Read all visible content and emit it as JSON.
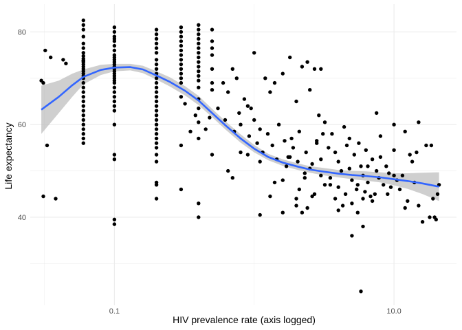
{
  "chart_data": {
    "type": "scatter",
    "title": "",
    "xlabel": "HIV prevalence rate (axis logged)",
    "ylabel": "Life expectancy",
    "x_scale": "log10",
    "xlim": [
      0.025,
      28
    ],
    "ylim": [
      21,
      86
    ],
    "x_ticks": [
      0.1,
      10.0
    ],
    "x_tick_labels": [
      "0.1",
      "10.0"
    ],
    "y_ticks": [
      40,
      60,
      80
    ],
    "y_tick_labels": [
      "40",
      "60",
      "80"
    ],
    "grid": true,
    "legend": "none",
    "points": [
      [
        0.03,
        69.5
      ],
      [
        0.031,
        69.0
      ],
      [
        0.032,
        76.0
      ],
      [
        0.033,
        55.5
      ],
      [
        0.035,
        74.5
      ],
      [
        0.038,
        44.0
      ],
      [
        0.031,
        44.5
      ],
      [
        0.043,
        74.0
      ],
      [
        0.045,
        73.2
      ],
      [
        0.06,
        73.8
      ],
      [
        0.06,
        73.8
      ],
      [
        0.06,
        82.5
      ],
      [
        0.06,
        81.5
      ],
      [
        0.06,
        80.5
      ],
      [
        0.06,
        79.0
      ],
      [
        0.06,
        77.5
      ],
      [
        0.06,
        76.5
      ],
      [
        0.06,
        75.5
      ],
      [
        0.06,
        74.8
      ],
      [
        0.06,
        74.2
      ],
      [
        0.06,
        73.5
      ],
      [
        0.06,
        73.0
      ],
      [
        0.06,
        72.5
      ],
      [
        0.06,
        72.0
      ],
      [
        0.06,
        71.5
      ],
      [
        0.06,
        71.0
      ],
      [
        0.06,
        70.5
      ],
      [
        0.06,
        70.0
      ],
      [
        0.06,
        69.0
      ],
      [
        0.06,
        68.0
      ],
      [
        0.06,
        67.0
      ],
      [
        0.06,
        66.0
      ],
      [
        0.06,
        65.0
      ],
      [
        0.06,
        64.0
      ],
      [
        0.06,
        63.0
      ],
      [
        0.06,
        62.0
      ],
      [
        0.06,
        61.0
      ],
      [
        0.06,
        60.0
      ],
      [
        0.06,
        59.0
      ],
      [
        0.06,
        58.0
      ],
      [
        0.06,
        57.0
      ],
      [
        0.06,
        56.0
      ],
      [
        0.1,
        81.0
      ],
      [
        0.1,
        80.0
      ],
      [
        0.1,
        79.0
      ],
      [
        0.1,
        78.5
      ],
      [
        0.1,
        78.0
      ],
      [
        0.1,
        77.0
      ],
      [
        0.1,
        76.0
      ],
      [
        0.1,
        75.0
      ],
      [
        0.1,
        74.5
      ],
      [
        0.1,
        74.0
      ],
      [
        0.1,
        73.5
      ],
      [
        0.1,
        73.0
      ],
      [
        0.1,
        72.5
      ],
      [
        0.1,
        72.0
      ],
      [
        0.1,
        71.5
      ],
      [
        0.1,
        71.0
      ],
      [
        0.1,
        70.5
      ],
      [
        0.1,
        70.0
      ],
      [
        0.1,
        69.5
      ],
      [
        0.1,
        69.0
      ],
      [
        0.1,
        68.0
      ],
      [
        0.1,
        67.0
      ],
      [
        0.1,
        66.0
      ],
      [
        0.1,
        65.0
      ],
      [
        0.1,
        64.0
      ],
      [
        0.1,
        63.0
      ],
      [
        0.1,
        60.0
      ],
      [
        0.1,
        53.5
      ],
      [
        0.1,
        52.5
      ],
      [
        0.1,
        39.5
      ],
      [
        0.1,
        38.5
      ],
      [
        0.2,
        80.5
      ],
      [
        0.2,
        79.5
      ],
      [
        0.2,
        78.5
      ],
      [
        0.2,
        77.5
      ],
      [
        0.2,
        76.5
      ],
      [
        0.2,
        75.5
      ],
      [
        0.2,
        74.0
      ],
      [
        0.2,
        73.0
      ],
      [
        0.2,
        72.0
      ],
      [
        0.2,
        71.0
      ],
      [
        0.2,
        70.0
      ],
      [
        0.2,
        69.0
      ],
      [
        0.2,
        68.0
      ],
      [
        0.2,
        67.0
      ],
      [
        0.2,
        66.0
      ],
      [
        0.2,
        65.0
      ],
      [
        0.2,
        64.0
      ],
      [
        0.2,
        63.0
      ],
      [
        0.2,
        62.0
      ],
      [
        0.2,
        61.0
      ],
      [
        0.2,
        60.0
      ],
      [
        0.2,
        59.0
      ],
      [
        0.2,
        58.0
      ],
      [
        0.2,
        57.0
      ],
      [
        0.2,
        56.0
      ],
      [
        0.2,
        55.0
      ],
      [
        0.2,
        53.5
      ],
      [
        0.2,
        52.0
      ],
      [
        0.2,
        47.5
      ],
      [
        0.2,
        47.0
      ],
      [
        0.2,
        44.0
      ],
      [
        0.3,
        81.0
      ],
      [
        0.3,
        80.0
      ],
      [
        0.3,
        79.0
      ],
      [
        0.3,
        78.0
      ],
      [
        0.3,
        77.0
      ],
      [
        0.3,
        76.0
      ],
      [
        0.3,
        75.0
      ],
      [
        0.3,
        74.0
      ],
      [
        0.3,
        73.0
      ],
      [
        0.3,
        72.0
      ],
      [
        0.3,
        71.0
      ],
      [
        0.3,
        70.0
      ],
      [
        0.3,
        69.0
      ],
      [
        0.3,
        66.0
      ],
      [
        0.3,
        55.5
      ],
      [
        0.3,
        46.0
      ],
      [
        0.4,
        81.5
      ],
      [
        0.4,
        80.5
      ],
      [
        0.4,
        79.5
      ],
      [
        0.4,
        78.5
      ],
      [
        0.4,
        77.5
      ],
      [
        0.4,
        76.5
      ],
      [
        0.4,
        75.5
      ],
      [
        0.4,
        74.5
      ],
      [
        0.4,
        73.5
      ],
      [
        0.4,
        72.5
      ],
      [
        0.4,
        71.5
      ],
      [
        0.4,
        70.5
      ],
      [
        0.4,
        69.5
      ],
      [
        0.4,
        68.0
      ],
      [
        0.4,
        65.5
      ],
      [
        0.4,
        63.5
      ],
      [
        0.4,
        60.5
      ],
      [
        0.4,
        57.0
      ],
      [
        0.4,
        43.0
      ],
      [
        0.4,
        40.0
      ],
      [
        0.5,
        80.5
      ],
      [
        0.5,
        78.0
      ],
      [
        0.5,
        76.5
      ],
      [
        0.5,
        75.0
      ],
      [
        0.5,
        72.0
      ],
      [
        0.5,
        69.0
      ],
      [
        0.5,
        67.5
      ],
      [
        0.5,
        53.5
      ],
      [
        0.32,
        64.5
      ],
      [
        0.35,
        58.5
      ],
      [
        0.38,
        62.0
      ],
      [
        0.45,
        59.0
      ],
      [
        0.48,
        61.5
      ],
      [
        0.55,
        63.5
      ],
      [
        0.6,
        69.0
      ],
      [
        0.62,
        61.0
      ],
      [
        0.65,
        67.0
      ],
      [
        0.7,
        72.0
      ],
      [
        0.72,
        58.5
      ],
      [
        0.75,
        70.0
      ],
      [
        0.78,
        62.5
      ],
      [
        0.8,
        60.0
      ],
      [
        0.85,
        65.5
      ],
      [
        0.9,
        64.0
      ],
      [
        0.92,
        57.5
      ],
      [
        0.95,
        63.5
      ],
      [
        1.0,
        75.5
      ],
      [
        1.0,
        61.0
      ],
      [
        1.05,
        56.0
      ],
      [
        1.1,
        59.0
      ],
      [
        1.15,
        54.0
      ],
      [
        1.2,
        70.0
      ],
      [
        1.25,
        58.0
      ],
      [
        1.3,
        67.0
      ],
      [
        1.35,
        55.5
      ],
      [
        1.4,
        69.0
      ],
      [
        1.45,
        52.5
      ],
      [
        1.5,
        60.0
      ],
      [
        1.6,
        71.0
      ],
      [
        1.65,
        56.5
      ],
      [
        1.7,
        51.0
      ],
      [
        1.75,
        53.0
      ],
      [
        1.8,
        74.5
      ],
      [
        1.85,
        57.0
      ],
      [
        1.9,
        55.0
      ],
      [
        2.0,
        65.0
      ],
      [
        2.05,
        52.0
      ],
      [
        2.1,
        58.5
      ],
      [
        2.2,
        72.5
      ],
      [
        2.3,
        49.5
      ],
      [
        2.35,
        54.0
      ],
      [
        2.4,
        73.5
      ],
      [
        2.5,
        67.5
      ],
      [
        2.6,
        51.5
      ],
      [
        2.7,
        72.0
      ],
      [
        2.8,
        56.0
      ],
      [
        2.9,
        62.0
      ],
      [
        3.0,
        72.0
      ],
      [
        3.1,
        58.0
      ],
      [
        3.2,
        47.0
      ],
      [
        0.65,
        50.0
      ],
      [
        0.7,
        48.5
      ],
      [
        0.8,
        54.0
      ],
      [
        0.9,
        53.5
      ],
      [
        1.1,
        52.0
      ],
      [
        1.1,
        40.5
      ],
      [
        1.3,
        44.5
      ],
      [
        1.4,
        47.5
      ],
      [
        1.6,
        48.0
      ],
      [
        1.6,
        41.0
      ],
      [
        1.8,
        53.0
      ],
      [
        2.0,
        42.5
      ],
      [
        2.1,
        46.0
      ],
      [
        2.2,
        41.0
      ],
      [
        2.4,
        42.0
      ],
      [
        2.5,
        50.5
      ],
      [
        2.7,
        45.0
      ],
      [
        2.8,
        56.5
      ],
      [
        3.0,
        52.5
      ],
      [
        3.2,
        60.5
      ],
      [
        3.4,
        55.0
      ],
      [
        3.6,
        58.0
      ],
      [
        3.8,
        54.0
      ],
      [
        4.0,
        52.0
      ],
      [
        4.2,
        50.0
      ],
      [
        4.4,
        59.5
      ],
      [
        4.6,
        55.5
      ],
      [
        4.8,
        57.0
      ],
      [
        5.0,
        48.0
      ],
      [
        5.2,
        53.5
      ],
      [
        5.4,
        46.0
      ],
      [
        5.6,
        56.0
      ],
      [
        5.8,
        51.0
      ],
      [
        6.0,
        49.0
      ],
      [
        6.3,
        54.5
      ],
      [
        6.5,
        47.5
      ],
      [
        6.8,
        44.5
      ],
      [
        7.0,
        52.5
      ],
      [
        7.3,
        45.0
      ],
      [
        7.5,
        50.0
      ],
      [
        7.8,
        48.5
      ],
      [
        8.0,
        53.0
      ],
      [
        8.4,
        47.0
      ],
      [
        8.8,
        51.0
      ],
      [
        9.2,
        49.5
      ],
      [
        9.5,
        46.5
      ],
      [
        10.0,
        49.0
      ],
      [
        10.5,
        48.0
      ],
      [
        11.0,
        46.0
      ],
      [
        11.5,
        49.0
      ],
      [
        3.5,
        48.5
      ],
      [
        3.8,
        44.0
      ],
      [
        4.0,
        46.5
      ],
      [
        4.3,
        42.5
      ],
      [
        4.8,
        50.5
      ],
      [
        5.0,
        36.0
      ],
      [
        5.5,
        47.0
      ],
      [
        5.8,
        24.0
      ],
      [
        6.0,
        44.0
      ],
      [
        6.2,
        45.5
      ],
      [
        6.5,
        51.0
      ],
      [
        7.0,
        43.5
      ],
      [
        7.5,
        62.5
      ],
      [
        8.0,
        57.5
      ],
      [
        9.0,
        45.0
      ],
      [
        10.0,
        54.5
      ],
      [
        10.0,
        60.0
      ],
      [
        12.0,
        42.0
      ],
      [
        12.5,
        43.5
      ],
      [
        13.0,
        53.5
      ],
      [
        14.0,
        47.5
      ],
      [
        15.0,
        60.5
      ],
      [
        16.0,
        39.0
      ],
      [
        17.0,
        55.5
      ],
      [
        18.0,
        40.0
      ],
      [
        19.0,
        44.0
      ],
      [
        20.0,
        39.5
      ],
      [
        21.0,
        47.0
      ],
      [
        14.5,
        54.0
      ],
      [
        12.0,
        58.5
      ],
      [
        2.0,
        44.0
      ],
      [
        2.3,
        48.5
      ],
      [
        2.6,
        44.5
      ],
      [
        3.0,
        49.0
      ],
      [
        3.5,
        47.0
      ],
      [
        4.0,
        41.5
      ],
      [
        4.5,
        45.0
      ],
      [
        5.0,
        43.0
      ],
      [
        5.5,
        41.0
      ],
      [
        6.0,
        38.0
      ],
      [
        15.0,
        42.5
      ],
      [
        18.5,
        55.5
      ],
      [
        19.5,
        40.0
      ],
      [
        20.5,
        45.0
      ],
      [
        13.5,
        52.0
      ]
    ],
    "smooth_fit": {
      "method": "loess",
      "x": [
        0.03,
        0.04,
        0.05,
        0.06,
        0.08,
        0.1,
        0.13,
        0.16,
        0.2,
        0.25,
        0.32,
        0.4,
        0.5,
        0.63,
        0.8,
        1.0,
        1.26,
        1.6,
        2.0,
        2.5,
        3.2,
        4.0,
        5.0,
        6.3,
        8.0,
        10.0,
        12.6,
        16.0,
        21.0
      ],
      "y": [
        63.2,
        66.0,
        68.5,
        70.3,
        71.8,
        72.3,
        72.4,
        71.9,
        70.6,
        69.2,
        67.3,
        65.2,
        62.5,
        59.7,
        57.0,
        54.8,
        53.0,
        51.8,
        51.0,
        50.3,
        49.8,
        49.4,
        49.1,
        48.9,
        48.6,
        48.2,
        47.8,
        47.3,
        46.6
      ],
      "ci_low": [
        58.0,
        62.5,
        66.0,
        68.7,
        70.7,
        71.5,
        71.7,
        71.1,
        69.7,
        68.2,
        66.3,
        64.2,
        61.6,
        58.8,
        56.1,
        54.0,
        52.3,
        51.1,
        50.3,
        49.6,
        49.0,
        48.6,
        48.2,
        47.9,
        47.5,
        46.9,
        46.1,
        45.0,
        43.5
      ],
      "ci_high": [
        68.4,
        69.5,
        71.0,
        71.9,
        72.9,
        73.1,
        73.1,
        72.7,
        71.5,
        70.2,
        68.3,
        66.2,
        63.4,
        60.6,
        57.9,
        55.6,
        53.7,
        52.5,
        51.7,
        51.0,
        50.6,
        50.2,
        50.0,
        49.9,
        49.7,
        49.5,
        49.5,
        49.6,
        49.7
      ],
      "line_color": "#3366FF",
      "band_color": "#BFBFBF"
    },
    "point_color": "#000000",
    "grid_color": "#EBEBEB"
  }
}
